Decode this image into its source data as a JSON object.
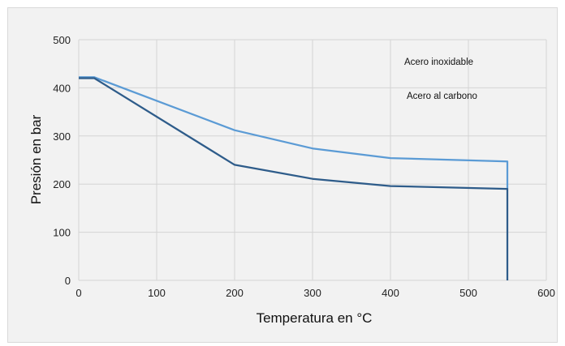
{
  "chart_data": {
    "type": "line",
    "title": "",
    "xlabel": "Temperatura en °C",
    "ylabel": "Presión en bar",
    "xlim": [
      0,
      600
    ],
    "ylim": [
      0,
      500
    ],
    "x_ticks": [
      0,
      100,
      200,
      300,
      400,
      500,
      600
    ],
    "y_ticks": [
      0,
      100,
      200,
      300,
      400,
      500
    ],
    "grid": true,
    "annotations": [
      "Acero inoxidable",
      "Acero al carbono"
    ],
    "series": [
      {
        "color": "#5b9bd5",
        "x": [
          0,
          20,
          200,
          300,
          400,
          550,
          550
        ],
        "y": [
          422,
          422,
          312,
          274,
          254,
          247,
          190
        ]
      },
      {
        "color": "#2e5c8a",
        "x": [
          0,
          20,
          200,
          300,
          400,
          550,
          550
        ],
        "y": [
          420,
          420,
          240,
          211,
          196,
          190,
          0
        ]
      }
    ]
  }
}
